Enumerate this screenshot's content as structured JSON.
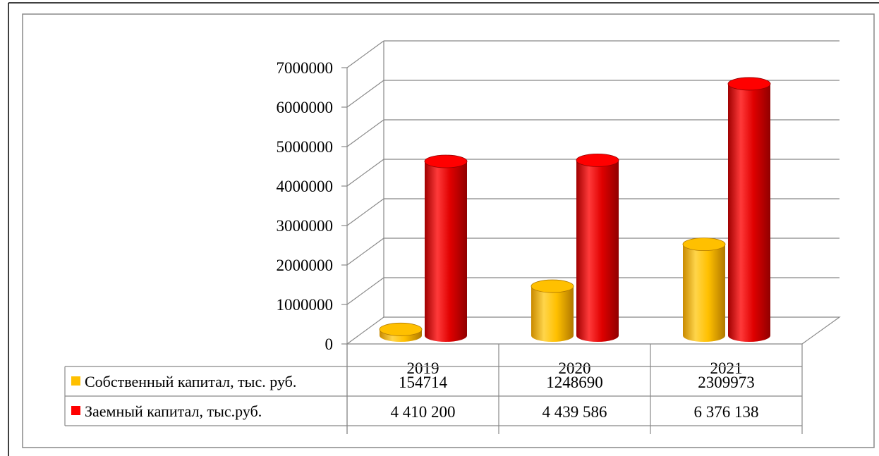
{
  "chart_data": {
    "type": "bar",
    "categories": [
      "2019",
      "2020",
      "2021"
    ],
    "series": [
      {
        "name": "Собственный капитал, тыс. руб.",
        "values": [
          154714,
          1248690,
          2309973
        ],
        "labels": [
          "154714",
          "1248690",
          "2309973"
        ],
        "color": "#FFC000"
      },
      {
        "name": "Заемный капитал, тыс.руб.",
        "values": [
          4410200,
          4439586,
          6376138
        ],
        "labels": [
          "4 410 200",
          "4 439 586",
          "6 376 138"
        ],
        "color": "#FF0000"
      }
    ],
    "ylim": [
      0,
      7000000
    ],
    "yticks": [
      "0",
      "1000000",
      "2000000",
      "3000000",
      "4000000",
      "5000000",
      "6000000",
      "7000000"
    ],
    "grid": true,
    "legend": "data-table"
  }
}
